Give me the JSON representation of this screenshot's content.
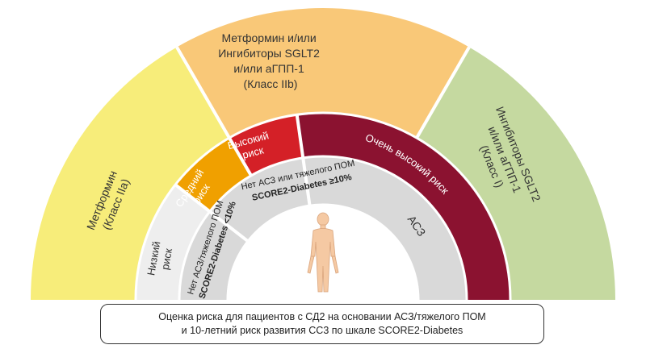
{
  "outer_band": {
    "metformin": {
      "lines": [
        "Метформин",
        "(Класс IIa)"
      ],
      "color": "#f7ed7a"
    },
    "combo": {
      "lines": [
        "Метформин и/или",
        "Ингибиторы SGLT2",
        "и/или аГПП-1",
        "(Класс IIb)"
      ],
      "color": "#f9c878"
    },
    "sglt2": {
      "lines": [
        "Ингибиторы SGLT2",
        "и/или аГПП-1",
        "(Класс I)"
      ],
      "color": "#c5d9a0"
    }
  },
  "risk_band": {
    "low": {
      "lines": [
        "Низкий",
        "риск"
      ],
      "color": "#eeeeee",
      "text_color": "#333333"
    },
    "moderate": {
      "lines": [
        "Средний",
        "риск"
      ],
      "color": "#f0a000",
      "text_color": "#ffffff"
    },
    "high": {
      "lines": [
        "Высокий",
        "риск"
      ],
      "color": "#d42027",
      "text_color": "#ffffff"
    },
    "very_high": {
      "label": "Очень высокий риск",
      "color": "#8b1230",
      "text_color": "#ffffff"
    }
  },
  "criteria_band": {
    "no_ascvd_low": {
      "line1": "Нет АСЗ/тяжелого ПОМ",
      "line2": "SCORE2-Diabetes <10%"
    },
    "no_ascvd_high": {
      "line1": "Нет АСЗ или тяжелого ПОМ",
      "line2": "SCORE2-Diabetes ≥10%"
    },
    "ascvd": {
      "label": "АСЗ"
    },
    "color": "#d9d9d9"
  },
  "figure_icon": "human-figure-icon",
  "caption": {
    "line1": "Оценка риска для пациентов с СД2 на основании АСЗ/тяжелого ПОМ",
    "line2": "и 10-летний риск развития СС3 по шкале SCORE2-Diabetes"
  }
}
